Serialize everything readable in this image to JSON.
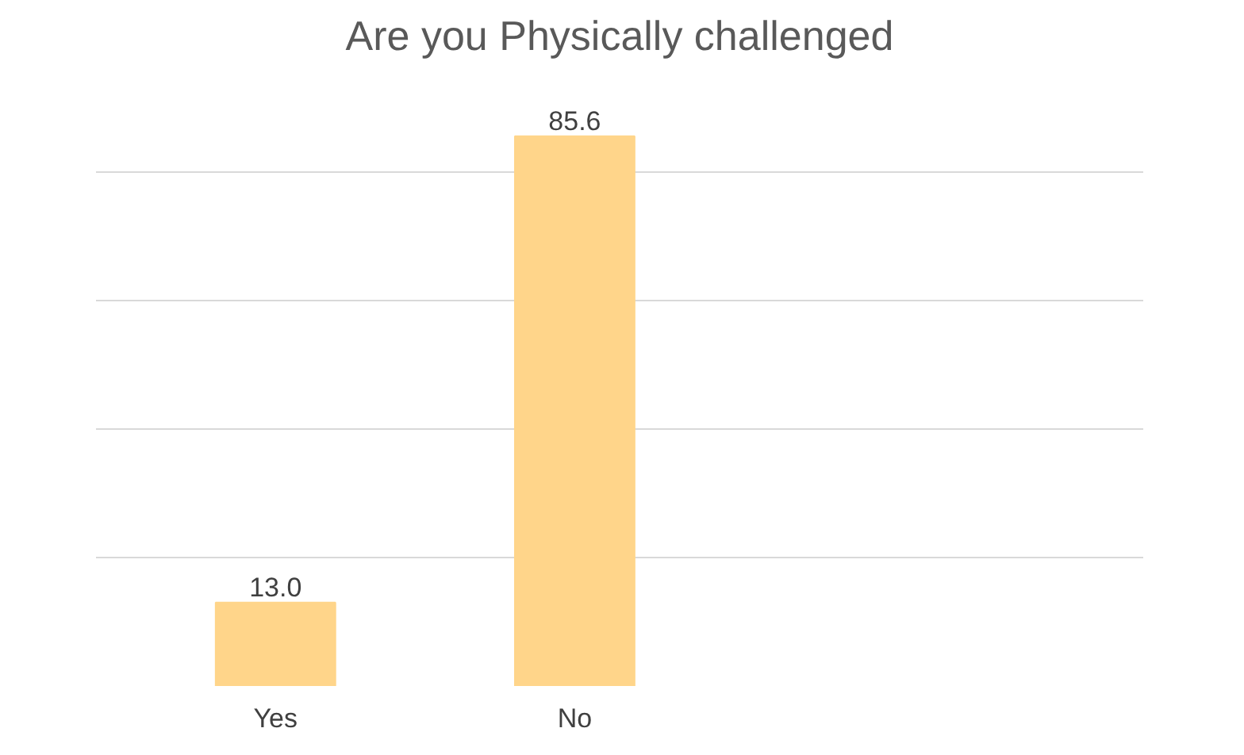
{
  "chart_data": {
    "type": "bar",
    "title": "Are you Physically challenged",
    "categories": [
      "Yes",
      "No"
    ],
    "values": [
      13.0,
      85.6
    ],
    "color": "#ffd58a",
    "value_labels": [
      "13.0",
      "85.6"
    ],
    "tick_labels": "x",
    "grid": "y"
  }
}
